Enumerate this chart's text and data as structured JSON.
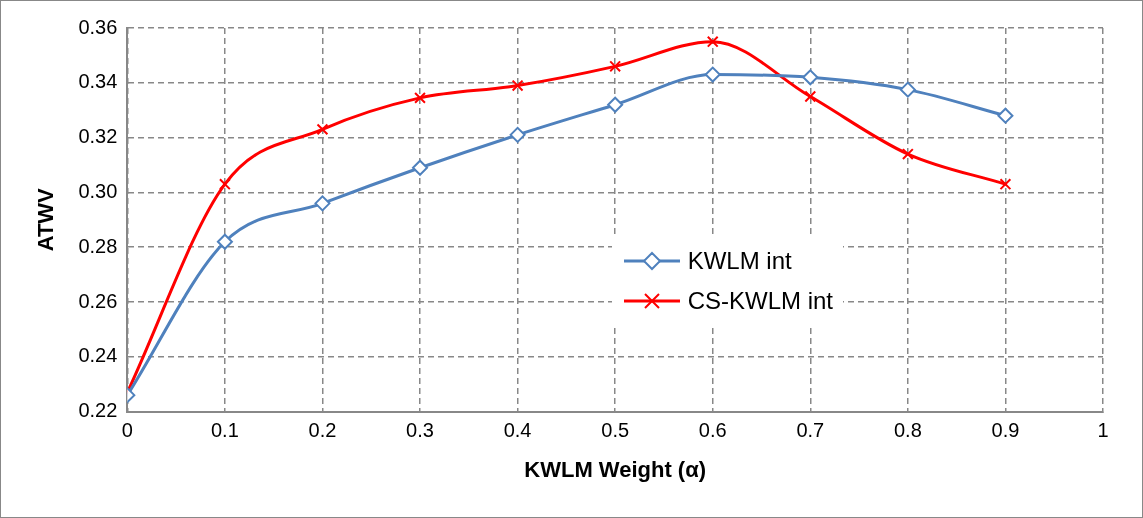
{
  "chart_data": {
    "type": "line",
    "xlabel": "KWLM Weight (α)",
    "ylabel": "ATWV",
    "x": [
      0,
      0.1,
      0.2,
      0.3,
      0.4,
      0.5,
      0.6,
      0.7,
      0.8,
      0.9
    ],
    "series": [
      {
        "name": "KWLM int",
        "color": "#4f81bd",
        "marker": "diamond",
        "values": [
          0.226,
          0.282,
          0.296,
          0.309,
          0.321,
          0.332,
          0.343,
          0.342,
          0.3375,
          0.328
        ]
      },
      {
        "name": "CS-KWLM int",
        "color": "#ff0000",
        "marker": "cross",
        "values": [
          0.227,
          0.303,
          0.323,
          0.3345,
          0.339,
          0.346,
          0.355,
          0.335,
          0.314,
          0.303
        ]
      }
    ],
    "xlim": [
      0,
      1
    ],
    "xticks": [
      0,
      0.1,
      0.2,
      0.3,
      0.4,
      0.5,
      0.6,
      0.7,
      0.8,
      0.9,
      1
    ],
    "ylim": [
      0.22,
      0.36
    ],
    "yticks": [
      0.22,
      0.24,
      0.26,
      0.28,
      {
        "value": 0.3,
        "label": "0.30"
      },
      0.32,
      0.34,
      0.36
    ],
    "grid": true,
    "legend": "right"
  }
}
